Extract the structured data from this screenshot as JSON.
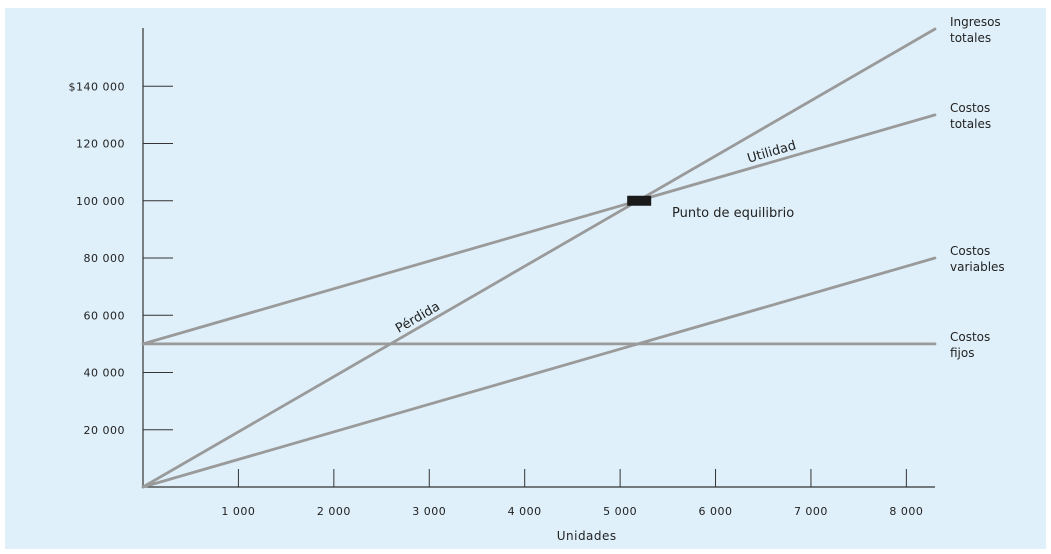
{
  "chart_data": {
    "type": "line",
    "xlabel": "Unidades",
    "ylabel": "",
    "xlim": [
      0,
      8300
    ],
    "ylim": [
      0,
      160000
    ],
    "grid": false,
    "x_ticks": [
      {
        "value": 1000,
        "label": "1 000"
      },
      {
        "value": 2000,
        "label": "2 000"
      },
      {
        "value": 3000,
        "label": "3 000"
      },
      {
        "value": 4000,
        "label": "4 000"
      },
      {
        "value": 5000,
        "label": "5 000"
      },
      {
        "value": 6000,
        "label": "6 000"
      },
      {
        "value": 7000,
        "label": "7 000"
      },
      {
        "value": 8000,
        "label": "8 000"
      }
    ],
    "y_ticks": [
      {
        "value": 20000,
        "label": "20 000"
      },
      {
        "value": 40000,
        "label": "40 000"
      },
      {
        "value": 60000,
        "label": "60 000"
      },
      {
        "value": 80000,
        "label": "80 000"
      },
      {
        "value": 100000,
        "label": "100 000"
      },
      {
        "value": 120000,
        "label": "120 000"
      },
      {
        "value": 140000,
        "label": "$140 000"
      }
    ],
    "series": [
      {
        "id": "ingresos",
        "name_lines": [
          "Ingresos",
          "totales"
        ],
        "x": [
          0,
          8300
        ],
        "values": [
          0,
          160000
        ],
        "color": "#9a9a9a"
      },
      {
        "id": "costos-totales",
        "name_lines": [
          "Costos",
          "totales"
        ],
        "x": [
          0,
          8300
        ],
        "values": [
          50000,
          130000
        ],
        "color": "#9a9a9a"
      },
      {
        "id": "costos-variables",
        "name_lines": [
          "Costos",
          "variables"
        ],
        "x": [
          0,
          8300
        ],
        "values": [
          0,
          80000
        ],
        "color": "#9a9a9a"
      },
      {
        "id": "costos-fijos",
        "name_lines": [
          "Costos",
          "fijos"
        ],
        "x": [
          0,
          8300
        ],
        "values": [
          50000,
          50000
        ],
        "color": "#9a9a9a"
      }
    ],
    "annotations": [
      {
        "id": "utilidad",
        "text": "Utilidad"
      },
      {
        "id": "perdida",
        "text": "Pérdida"
      },
      {
        "id": "equilibrio",
        "text": "Punto de equilibrio"
      }
    ],
    "break_even": {
      "x": 5200,
      "y": 100000
    }
  }
}
